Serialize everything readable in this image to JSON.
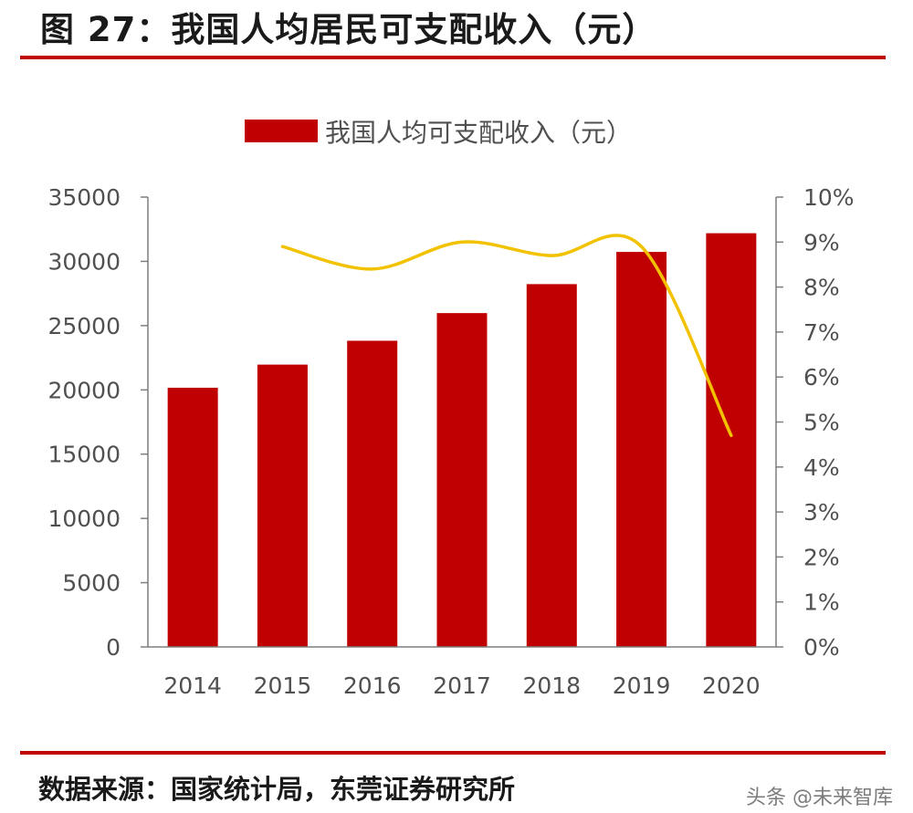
{
  "figure_title": "图 27：我国人均居民可支配收入（元）",
  "source": "数据来源：国家统计局，东莞证券研究所",
  "watermark": "头条 @未来智库",
  "colors": {
    "bar": "#c00000",
    "line": "#f2c200",
    "rule": "#c00000",
    "axis": "#7f7f7f"
  },
  "chart_data": {
    "type": "bar",
    "categories": [
      "2014",
      "2015",
      "2016",
      "2017",
      "2018",
      "2019",
      "2020"
    ],
    "series": [
      {
        "name": "我国人均可支配收入（元）",
        "type": "bar",
        "axis": "left",
        "values": [
          20167,
          21966,
          23821,
          25974,
          28228,
          30733,
          32189
        ]
      },
      {
        "type": "line",
        "axis": "right",
        "unit": "%",
        "values": [
          null,
          8.9,
          8.4,
          9.0,
          8.7,
          8.9,
          4.7
        ]
      }
    ],
    "y_left": {
      "min": 0,
      "max": 35000,
      "ticks": [
        "0",
        "5000",
        "10000",
        "15000",
        "20000",
        "25000",
        "30000",
        "35000"
      ]
    },
    "y_right": {
      "min": 0,
      "max": 10,
      "ticks": [
        "0%",
        "1%",
        "2%",
        "3%",
        "4%",
        "5%",
        "6%",
        "7%",
        "8%",
        "9%",
        "10%"
      ]
    },
    "legend": {
      "position": "top",
      "label": "我国人均可支配收入（元）"
    },
    "grid": false
  }
}
